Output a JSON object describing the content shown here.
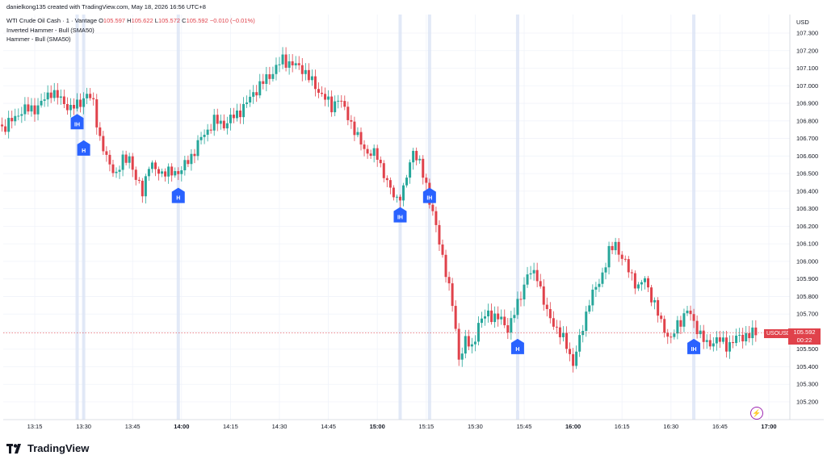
{
  "header": {
    "author_line": "danielkong135 created with TradingView.com, May 18, 2026 16:56 UTC+8",
    "symbol_name": "WTI Crude Oil Cash · 1 · Vantage",
    "o_label": "O",
    "o_value": "105.597",
    "h_label": "H",
    "h_value": "105.622",
    "l_label": "L",
    "l_value": "105.572",
    "c_label": "C",
    "c_value": "105.592",
    "change": "−0.010 (−0.01%)",
    "indicator_1": "Inverted Hammer - Bull (SMA50)",
    "indicator_2": "Hammer - Bull (SMA50)"
  },
  "axis": {
    "currency": "USD"
  },
  "price_tag": {
    "symbol": "USOUSD",
    "price": "105.592",
    "countdown": "00:22"
  },
  "footer": {
    "brand": "TradingView"
  },
  "colors": {
    "up": "#26a69a",
    "down": "#e0424b",
    "marker": "#2962ff",
    "highlight": "#dbe3f5",
    "grid": "#f0f3fa"
  },
  "chart_data": {
    "type": "candlestick",
    "ylim": [
      105.1,
      107.4
    ],
    "yticks": [
      "107.300",
      "107.200",
      "107.100",
      "107.000",
      "106.900",
      "106.800",
      "106.700",
      "106.600",
      "106.500",
      "106.400",
      "106.300",
      "106.200",
      "106.100",
      "106.000",
      "105.900",
      "105.800",
      "105.700",
      "105.600",
      "105.500",
      "105.400",
      "105.300",
      "105.200"
    ],
    "ytick_values": [
      107.3,
      107.2,
      107.1,
      107.0,
      106.9,
      106.8,
      106.7,
      106.6,
      106.5,
      106.4,
      106.3,
      106.2,
      106.1,
      106.0,
      105.9,
      105.8,
      105.7,
      105.6,
      105.5,
      105.4,
      105.3,
      105.2
    ],
    "xticks": [
      "13:15",
      "13:30",
      "13:45",
      "14:00",
      "14:15",
      "14:30",
      "14:45",
      "15:00",
      "15:15",
      "15:30",
      "15:45",
      "16:00",
      "16:15",
      "16:30",
      "16:45",
      "17:00"
    ],
    "xtick_minutes": [
      795,
      810,
      825,
      840,
      855,
      870,
      885,
      900,
      915,
      930,
      945,
      960,
      975,
      990,
      1005,
      1020
    ],
    "bold_xticks": [
      "14:00",
      "15:00",
      "16:00",
      "17:00"
    ],
    "time_start_minute": 785,
    "current_price": 105.592,
    "waypoints": [
      [
        785,
        106.76
      ],
      [
        788,
        106.8
      ],
      [
        791,
        106.86
      ],
      [
        795,
        106.87
      ],
      [
        797,
        106.9
      ],
      [
        800,
        106.97
      ],
      [
        803,
        106.92
      ],
      [
        806,
        106.87
      ],
      [
        808,
        106.89
      ],
      [
        811,
        106.95
      ],
      [
        813,
        106.9
      ],
      [
        815,
        106.7
      ],
      [
        817,
        106.58
      ],
      [
        820,
        106.5
      ],
      [
        822,
        106.57
      ],
      [
        824,
        106.6
      ],
      [
        826,
        106.46
      ],
      [
        828,
        106.4
      ],
      [
        830,
        106.55
      ],
      [
        832,
        106.52
      ],
      [
        836,
        106.5
      ],
      [
        840,
        106.52
      ],
      [
        843,
        106.6
      ],
      [
        846,
        106.7
      ],
      [
        850,
        106.8
      ],
      [
        853,
        106.78
      ],
      [
        857,
        106.84
      ],
      [
        860,
        106.9
      ],
      [
        862,
        106.96
      ],
      [
        865,
        107.02
      ],
      [
        868,
        107.08
      ],
      [
        871,
        107.15
      ],
      [
        874,
        107.12
      ],
      [
        877,
        107.1
      ],
      [
        880,
        107.02
      ],
      [
        883,
        106.95
      ],
      [
        886,
        106.88
      ],
      [
        888,
        106.93
      ],
      [
        891,
        106.83
      ],
      [
        894,
        106.7
      ],
      [
        897,
        106.62
      ],
      [
        900,
        106.6
      ],
      [
        902,
        106.5
      ],
      [
        904,
        106.4
      ],
      [
        906,
        106.36
      ],
      [
        908,
        106.4
      ],
      [
        910,
        106.56
      ],
      [
        911,
        106.64
      ],
      [
        913,
        106.55
      ],
      [
        915,
        106.43
      ],
      [
        917,
        106.28
      ],
      [
        919,
        106.1
      ],
      [
        921,
        105.95
      ],
      [
        923,
        105.75
      ],
      [
        925,
        105.45
      ],
      [
        927,
        105.55
      ],
      [
        929,
        105.5
      ],
      [
        931,
        105.65
      ],
      [
        934,
        105.7
      ],
      [
        937,
        105.68
      ],
      [
        940,
        105.62
      ],
      [
        943,
        105.75
      ],
      [
        946,
        105.93
      ],
      [
        949,
        105.92
      ],
      [
        952,
        105.7
      ],
      [
        955,
        105.62
      ],
      [
        958,
        105.52
      ],
      [
        960,
        105.42
      ],
      [
        962,
        105.55
      ],
      [
        965,
        105.78
      ],
      [
        968,
        105.88
      ],
      [
        971,
        106.05
      ],
      [
        973,
        106.1
      ],
      [
        975,
        106.02
      ],
      [
        977,
        105.95
      ],
      [
        980,
        105.85
      ],
      [
        982,
        105.9
      ],
      [
        984,
        105.8
      ],
      [
        987,
        105.65
      ],
      [
        990,
        105.55
      ],
      [
        992,
        105.64
      ],
      [
        995,
        105.72
      ],
      [
        998,
        105.62
      ],
      [
        1001,
        105.52
      ],
      [
        1004,
        105.56
      ],
      [
        1007,
        105.52
      ],
      [
        1010,
        105.56
      ],
      [
        1013,
        105.58
      ],
      [
        1016,
        105.59
      ]
    ],
    "patterns": [
      {
        "label": "IH",
        "time": 808,
        "side": "below",
        "price": 106.83
      },
      {
        "label": "H",
        "time": 810,
        "side": "below",
        "price": 106.68
      },
      {
        "label": "H",
        "time": 839,
        "side": "below",
        "price": 106.41
      },
      {
        "label": "IH",
        "time": 907,
        "side": "below",
        "price": 106.3
      },
      {
        "label": "IH",
        "time": 916,
        "side": "below",
        "price": 106.41
      },
      {
        "label": "H",
        "time": 943,
        "side": "below",
        "price": 105.55
      },
      {
        "label": "IH",
        "time": 997,
        "side": "below",
        "price": 105.55
      }
    ]
  }
}
